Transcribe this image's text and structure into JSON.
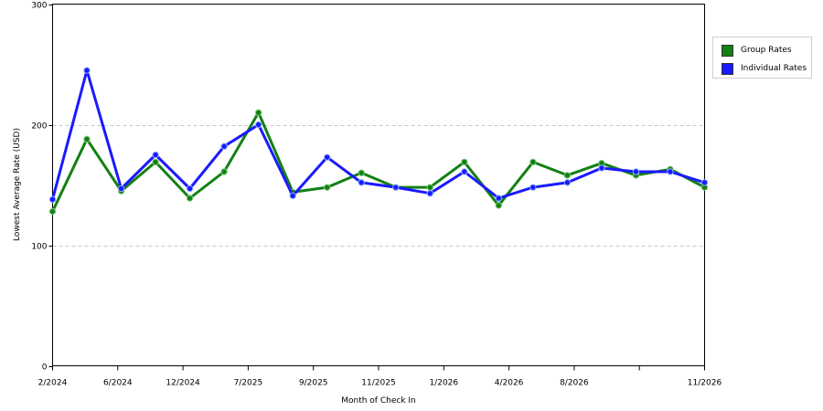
{
  "chart_data": {
    "type": "line",
    "xlabel": "Month of Check In",
    "ylabel": "Lowest Average Rate (USD)",
    "ylim": [
      0,
      300
    ],
    "yticks": [
      0,
      100,
      200,
      300
    ],
    "grid": "horizontal dashed",
    "legend_position": "right",
    "x_tick_labels": [
      "2/2024",
      "6/2024",
      "12/2024",
      "7/2025",
      "9/2025",
      "11/2025",
      "1/2026",
      "4/2026",
      "8/2026",
      "",
      "11/2026"
    ],
    "series": [
      {
        "name": "Group Rates",
        "color": "#138013",
        "values": [
          128,
          188,
          145,
          169,
          139,
          161,
          210,
          144,
          148,
          160,
          148,
          148,
          169,
          133,
          169,
          158,
          168,
          158,
          163,
          148
        ]
      },
      {
        "name": "Individual Rates",
        "color": "#1a1aff",
        "values": [
          138,
          245,
          147,
          175,
          147,
          182,
          200,
          141,
          173,
          152,
          148,
          143,
          161,
          139,
          148,
          152,
          164,
          161,
          161,
          152
        ]
      }
    ]
  }
}
